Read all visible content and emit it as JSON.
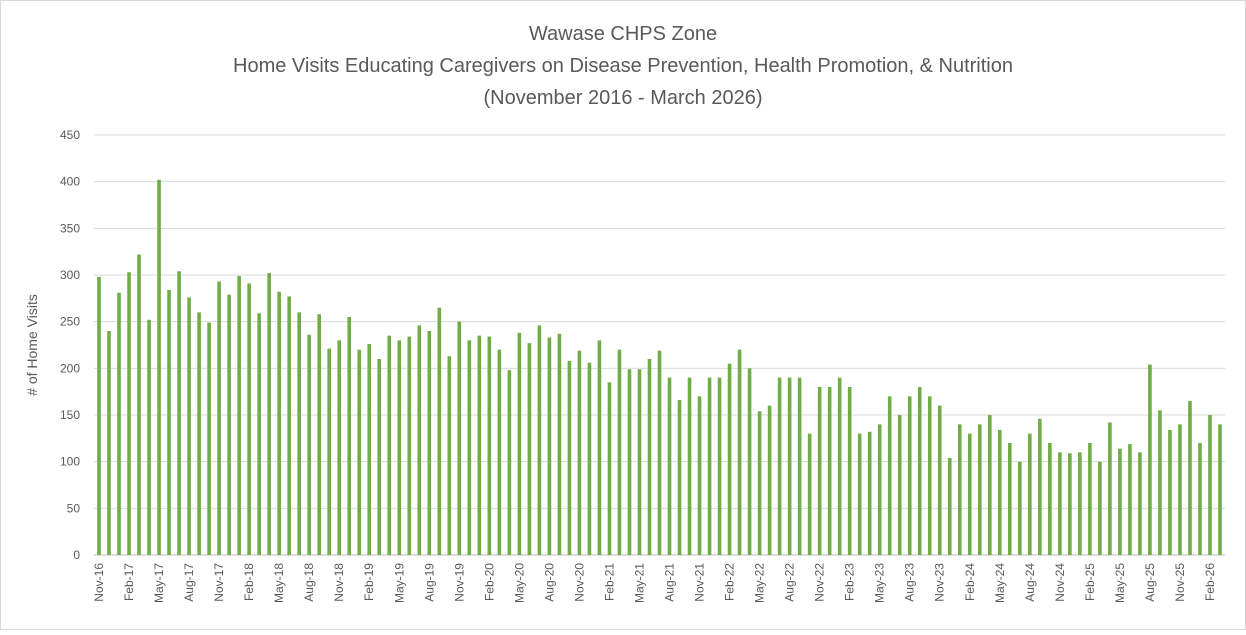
{
  "chart_data": {
    "type": "bar",
    "title": [
      "Wawase CHPS Zone",
      "Home Visits Educating Caregivers on Disease Prevention, Health Promotion, & Nutrition",
      "(November 2016 - March 2026)"
    ],
    "y_label": "# of Home Visits",
    "color": "#70ad47",
    "ylim": [
      0,
      450
    ],
    "yticks": [
      0,
      50,
      100,
      150,
      200,
      250,
      300,
      350,
      400,
      450
    ],
    "grid": true,
    "categories": [
      "Nov-16",
      null,
      null,
      "Feb-17",
      null,
      null,
      "May-17",
      null,
      null,
      "Aug-17",
      null,
      null,
      "Nov-17",
      null,
      null,
      "Feb-18",
      null,
      null,
      "May-18",
      null,
      null,
      "Aug-18",
      null,
      null,
      "Nov-18",
      null,
      null,
      "Feb-19",
      null,
      null,
      "May-19",
      null,
      null,
      "Aug-19",
      null,
      null,
      "Nov-19",
      null,
      null,
      "Feb-20",
      null,
      null,
      "May-20",
      null,
      null,
      "Aug-20",
      null,
      null,
      "Nov-20",
      null,
      null,
      "Feb-21",
      null,
      null,
      "May-21",
      null,
      null,
      "Aug-21",
      null,
      null,
      "Nov-21",
      null,
      null,
      "Feb-22",
      null,
      null,
      "May-22",
      null,
      null,
      "Aug-22",
      null,
      null,
      "Nov-22",
      null,
      null,
      "Feb-23",
      null,
      null,
      "May-23",
      null,
      null,
      "Aug-23",
      null,
      null,
      "Nov-23",
      null,
      null,
      "Feb-24",
      null,
      null,
      "May-24",
      null,
      null,
      "Aug-24",
      null,
      null,
      "Nov-24",
      null,
      null,
      "Feb-25",
      null,
      null,
      "May-25",
      null,
      null,
      "Aug-25",
      null,
      null,
      "Nov-25",
      null,
      null,
      "Feb-26",
      null
    ],
    "values": [
      298,
      240,
      281,
      303,
      322,
      252,
      402,
      284,
      304,
      276,
      260,
      249,
      293,
      279,
      299,
      291,
      259,
      302,
      282,
      277,
      260,
      236,
      258,
      221,
      230,
      255,
      220,
      226,
      210,
      235,
      230,
      234,
      246,
      240,
      265,
      213,
      250,
      230,
      235,
      234,
      220,
      198,
      238,
      227,
      246,
      233,
      237,
      208,
      219,
      206,
      230,
      185,
      220,
      199,
      199,
      210,
      219,
      190,
      166,
      190,
      170,
      190,
      190,
      205,
      220,
      200,
      154,
      160,
      190,
      190,
      190,
      130,
      180,
      180,
      190,
      180,
      130,
      132,
      140,
      170,
      150,
      170,
      180,
      170,
      160,
      104,
      140,
      130,
      140,
      150,
      134,
      120,
      100,
      130,
      146,
      120,
      110,
      109,
      110,
      120,
      100,
      142,
      114,
      119,
      110,
      204,
      155,
      134,
      140,
      165,
      120,
      150,
      140
    ]
  }
}
